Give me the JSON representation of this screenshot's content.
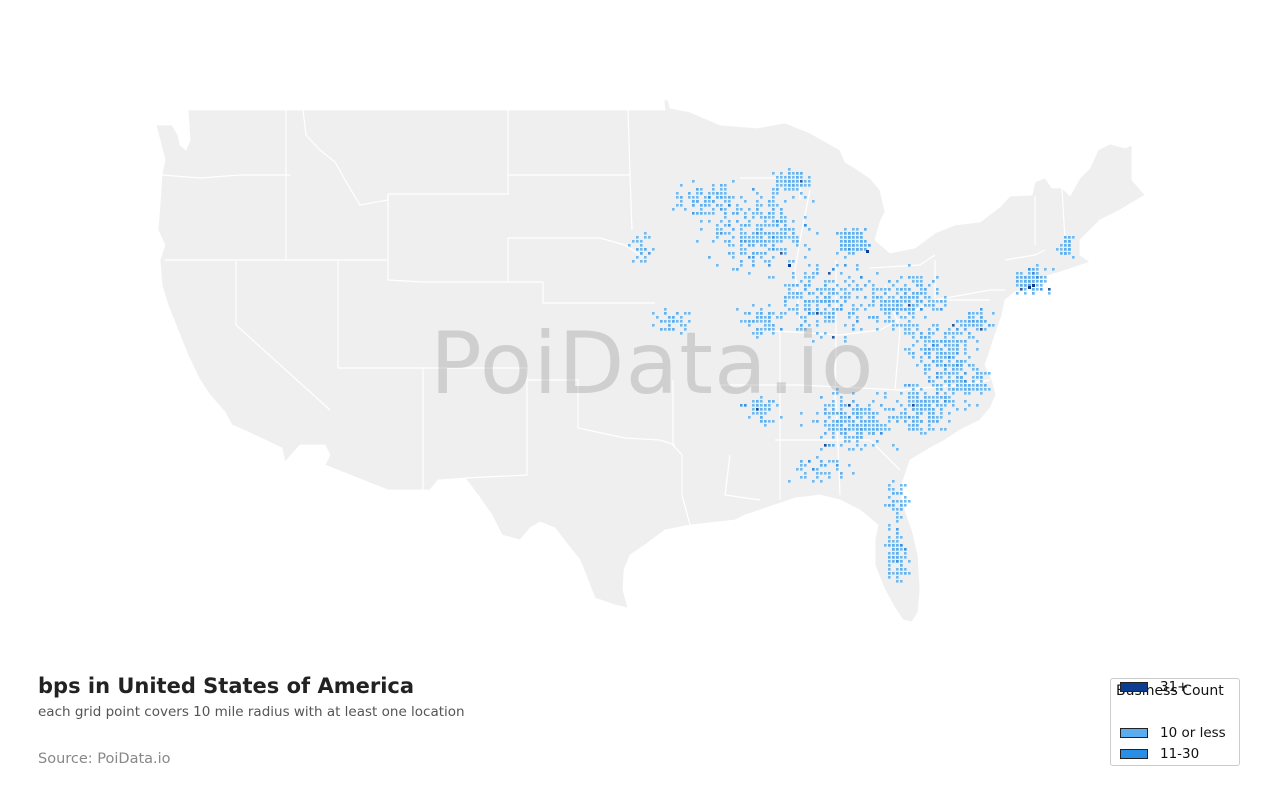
{
  "title": "bps in United States of America",
  "subtitle": "each grid point covers 10 mile radius with at least one location",
  "source": "Source: PoiData.io",
  "watermark": "PoiData.io",
  "legend": {
    "title": "Business Count",
    "items": [
      {
        "label": "10 or less",
        "color": "#5aaef0"
      },
      {
        "label": "11-30",
        "color": "#2b8ee6"
      },
      {
        "label": "31+",
        "color": "#0d3d91"
      }
    ]
  },
  "colors": {
    "land": "#efefef",
    "state_border": "#ffffff",
    "point_low": "#5aaef0",
    "point_mid": "#2b8ee6",
    "point_high": "#0d3d91"
  }
}
